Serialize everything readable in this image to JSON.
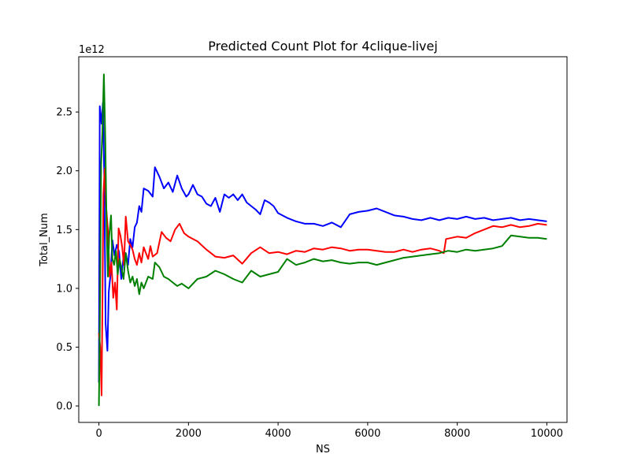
{
  "chart_data": {
    "type": "line",
    "title": "Predicted Count Plot for 4clique-livej",
    "xlabel": "NS",
    "ylabel": "Total_Num",
    "y_offset_label": "1e12",
    "xlim": [
      -450,
      10450
    ],
    "ylim": [
      -0.14,
      2.97
    ],
    "x_ticks": [
      0,
      2000,
      4000,
      6000,
      8000,
      10000
    ],
    "x_tick_labels": [
      "0",
      "2000",
      "4000",
      "6000",
      "8000",
      "10000"
    ],
    "y_ticks": [
      0.0,
      0.5,
      1.0,
      1.5,
      2.0,
      2.5
    ],
    "y_tick_labels": [
      "0.0",
      "0.5",
      "1.0",
      "1.5",
      "2.0",
      "2.5"
    ],
    "grid": false,
    "legend": "none",
    "series": [
      {
        "color": "#0000ff",
        "points": [
          [
            0,
            0.2
          ],
          [
            20,
            2.55
          ],
          [
            60,
            2.4
          ],
          [
            90,
            2.58
          ],
          [
            120,
            1.95
          ],
          [
            150,
            0.7
          ],
          [
            190,
            0.47
          ],
          [
            220,
            0.97
          ],
          [
            260,
            1.12
          ],
          [
            300,
            1.41
          ],
          [
            350,
            1.28
          ],
          [
            400,
            1.37
          ],
          [
            450,
            1.31
          ],
          [
            500,
            1.08
          ],
          [
            550,
            1.27
          ],
          [
            600,
            1.3
          ],
          [
            650,
            1.2
          ],
          [
            700,
            1.42
          ],
          [
            750,
            1.35
          ],
          [
            800,
            1.52
          ],
          [
            850,
            1.56
          ],
          [
            900,
            1.7
          ],
          [
            950,
            1.65
          ],
          [
            1000,
            1.85
          ],
          [
            1100,
            1.83
          ],
          [
            1200,
            1.78
          ],
          [
            1250,
            2.03
          ],
          [
            1350,
            1.95
          ],
          [
            1450,
            1.85
          ],
          [
            1550,
            1.9
          ],
          [
            1650,
            1.82
          ],
          [
            1750,
            1.96
          ],
          [
            1850,
            1.85
          ],
          [
            1950,
            1.78
          ],
          [
            2000,
            1.8
          ],
          [
            2100,
            1.88
          ],
          [
            2200,
            1.8
          ],
          [
            2300,
            1.78
          ],
          [
            2400,
            1.72
          ],
          [
            2500,
            1.7
          ],
          [
            2600,
            1.77
          ],
          [
            2700,
            1.65
          ],
          [
            2800,
            1.8
          ],
          [
            2900,
            1.77
          ],
          [
            3000,
            1.8
          ],
          [
            3100,
            1.75
          ],
          [
            3200,
            1.8
          ],
          [
            3300,
            1.73
          ],
          [
            3400,
            1.7
          ],
          [
            3500,
            1.67
          ],
          [
            3600,
            1.63
          ],
          [
            3700,
            1.75
          ],
          [
            3800,
            1.73
          ],
          [
            3900,
            1.7
          ],
          [
            4000,
            1.64
          ],
          [
            4200,
            1.6
          ],
          [
            4400,
            1.57
          ],
          [
            4600,
            1.55
          ],
          [
            4800,
            1.55
          ],
          [
            5000,
            1.53
          ],
          [
            5200,
            1.56
          ],
          [
            5400,
            1.52
          ],
          [
            5600,
            1.63
          ],
          [
            5800,
            1.65
          ],
          [
            6000,
            1.66
          ],
          [
            6200,
            1.68
          ],
          [
            6400,
            1.65
          ],
          [
            6600,
            1.62
          ],
          [
            6800,
            1.61
          ],
          [
            7000,
            1.59
          ],
          [
            7200,
            1.58
          ],
          [
            7400,
            1.6
          ],
          [
            7600,
            1.58
          ],
          [
            7800,
            1.6
          ],
          [
            8000,
            1.59
          ],
          [
            8200,
            1.61
          ],
          [
            8400,
            1.59
          ],
          [
            8600,
            1.6
          ],
          [
            8800,
            1.58
          ],
          [
            9000,
            1.59
          ],
          [
            9200,
            1.6
          ],
          [
            9400,
            1.58
          ],
          [
            9600,
            1.59
          ],
          [
            9800,
            1.58
          ],
          [
            10000,
            1.57
          ]
        ]
      },
      {
        "color": "#ff0000",
        "points": [
          [
            0,
            0.62
          ],
          [
            30,
            0.5
          ],
          [
            60,
            0.09
          ],
          [
            100,
            1.8
          ],
          [
            130,
            2.02
          ],
          [
            160,
            1.7
          ],
          [
            200,
            1.5
          ],
          [
            240,
            1.1
          ],
          [
            280,
            1.22
          ],
          [
            320,
            0.92
          ],
          [
            360,
            1.05
          ],
          [
            400,
            0.82
          ],
          [
            440,
            1.51
          ],
          [
            480,
            1.45
          ],
          [
            520,
            1.35
          ],
          [
            560,
            1.2
          ],
          [
            600,
            1.61
          ],
          [
            650,
            1.4
          ],
          [
            700,
            1.37
          ],
          [
            750,
            1.33
          ],
          [
            800,
            1.25
          ],
          [
            850,
            1.2
          ],
          [
            900,
            1.3
          ],
          [
            950,
            1.22
          ],
          [
            1000,
            1.35
          ],
          [
            1050,
            1.3
          ],
          [
            1100,
            1.25
          ],
          [
            1150,
            1.36
          ],
          [
            1200,
            1.27
          ],
          [
            1300,
            1.3
          ],
          [
            1400,
            1.48
          ],
          [
            1500,
            1.43
          ],
          [
            1600,
            1.4
          ],
          [
            1700,
            1.5
          ],
          [
            1800,
            1.55
          ],
          [
            1900,
            1.47
          ],
          [
            2000,
            1.44
          ],
          [
            2200,
            1.4
          ],
          [
            2400,
            1.33
          ],
          [
            2600,
            1.27
          ],
          [
            2800,
            1.26
          ],
          [
            3000,
            1.28
          ],
          [
            3200,
            1.21
          ],
          [
            3400,
            1.3
          ],
          [
            3600,
            1.35
          ],
          [
            3800,
            1.3
          ],
          [
            4000,
            1.31
          ],
          [
            4200,
            1.29
          ],
          [
            4400,
            1.32
          ],
          [
            4600,
            1.31
          ],
          [
            4800,
            1.34
          ],
          [
            5000,
            1.33
          ],
          [
            5200,
            1.35
          ],
          [
            5400,
            1.34
          ],
          [
            5600,
            1.32
          ],
          [
            5800,
            1.33
          ],
          [
            6000,
            1.33
          ],
          [
            6200,
            1.32
          ],
          [
            6400,
            1.31
          ],
          [
            6600,
            1.31
          ],
          [
            6800,
            1.33
          ],
          [
            7000,
            1.31
          ],
          [
            7200,
            1.33
          ],
          [
            7400,
            1.34
          ],
          [
            7600,
            1.32
          ],
          [
            7700,
            1.3
          ],
          [
            7750,
            1.42
          ],
          [
            8000,
            1.44
          ],
          [
            8200,
            1.43
          ],
          [
            8400,
            1.47
          ],
          [
            8600,
            1.5
          ],
          [
            8800,
            1.53
          ],
          [
            9000,
            1.52
          ],
          [
            9200,
            1.54
          ],
          [
            9400,
            1.52
          ],
          [
            9600,
            1.53
          ],
          [
            9800,
            1.55
          ],
          [
            10000,
            1.54
          ]
        ]
      },
      {
        "color": "#008000",
        "points": [
          [
            0,
            0.0
          ],
          [
            20,
            0.66
          ],
          [
            50,
            2.05
          ],
          [
            80,
            2.35
          ],
          [
            110,
            2.82
          ],
          [
            140,
            2.3
          ],
          [
            170,
            1.55
          ],
          [
            200,
            1.1
          ],
          [
            230,
            1.45
          ],
          [
            270,
            1.62
          ],
          [
            300,
            1.25
          ],
          [
            340,
            1.2
          ],
          [
            380,
            1.32
          ],
          [
            420,
            1.12
          ],
          [
            460,
            1.25
          ],
          [
            500,
            1.18
          ],
          [
            550,
            1.08
          ],
          [
            600,
            1.3
          ],
          [
            650,
            1.15
          ],
          [
            700,
            1.05
          ],
          [
            750,
            1.1
          ],
          [
            800,
            1.02
          ],
          [
            850,
            1.08
          ],
          [
            900,
            0.95
          ],
          [
            950,
            1.05
          ],
          [
            1000,
            1.0
          ],
          [
            1100,
            1.1
          ],
          [
            1200,
            1.08
          ],
          [
            1250,
            1.22
          ],
          [
            1350,
            1.18
          ],
          [
            1450,
            1.1
          ],
          [
            1550,
            1.08
          ],
          [
            1650,
            1.05
          ],
          [
            1750,
            1.02
          ],
          [
            1850,
            1.04
          ],
          [
            2000,
            1.0
          ],
          [
            2200,
            1.08
          ],
          [
            2400,
            1.1
          ],
          [
            2600,
            1.15
          ],
          [
            2800,
            1.12
          ],
          [
            3000,
            1.08
          ],
          [
            3200,
            1.05
          ],
          [
            3400,
            1.15
          ],
          [
            3600,
            1.1
          ],
          [
            3800,
            1.12
          ],
          [
            4000,
            1.14
          ],
          [
            4200,
            1.25
          ],
          [
            4400,
            1.2
          ],
          [
            4600,
            1.22
          ],
          [
            4800,
            1.25
          ],
          [
            5000,
            1.23
          ],
          [
            5200,
            1.24
          ],
          [
            5400,
            1.22
          ],
          [
            5600,
            1.21
          ],
          [
            5800,
            1.22
          ],
          [
            6000,
            1.22
          ],
          [
            6200,
            1.2
          ],
          [
            6400,
            1.22
          ],
          [
            6600,
            1.24
          ],
          [
            6800,
            1.26
          ],
          [
            7000,
            1.27
          ],
          [
            7200,
            1.28
          ],
          [
            7400,
            1.29
          ],
          [
            7600,
            1.3
          ],
          [
            7800,
            1.32
          ],
          [
            8000,
            1.31
          ],
          [
            8200,
            1.33
          ],
          [
            8400,
            1.32
          ],
          [
            8600,
            1.33
          ],
          [
            8800,
            1.34
          ],
          [
            9000,
            1.36
          ],
          [
            9200,
            1.45
          ],
          [
            9400,
            1.44
          ],
          [
            9600,
            1.43
          ],
          [
            9800,
            1.43
          ],
          [
            10000,
            1.42
          ]
        ]
      }
    ]
  }
}
